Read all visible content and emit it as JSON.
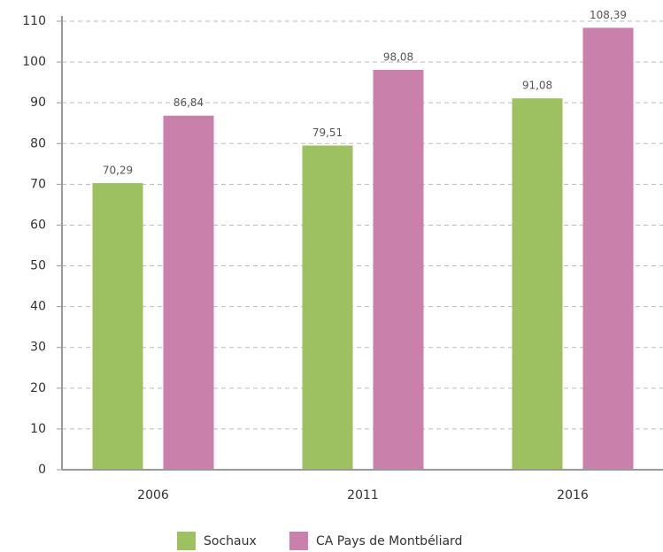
{
  "chart_data": {
    "type": "bar",
    "categories": [
      "2006",
      "2011",
      "2016"
    ],
    "series": [
      {
        "name": "Sochaux",
        "color": "#9dc160",
        "values": [
          70.29,
          79.51,
          91.08
        ],
        "value_labels": [
          "70,29",
          "79,51",
          "91,08"
        ]
      },
      {
        "name": "CA Pays de Montbéliard",
        "color": "#c981ab",
        "values": [
          86.84,
          98.08,
          108.39
        ],
        "value_labels": [
          "86,84",
          "98,08",
          "108,39"
        ]
      }
    ],
    "ylim": [
      0,
      110
    ],
    "yticks": [
      0,
      10,
      20,
      30,
      40,
      50,
      60,
      70,
      80,
      90,
      100,
      110
    ],
    "grid": true,
    "legend": "bottom"
  }
}
